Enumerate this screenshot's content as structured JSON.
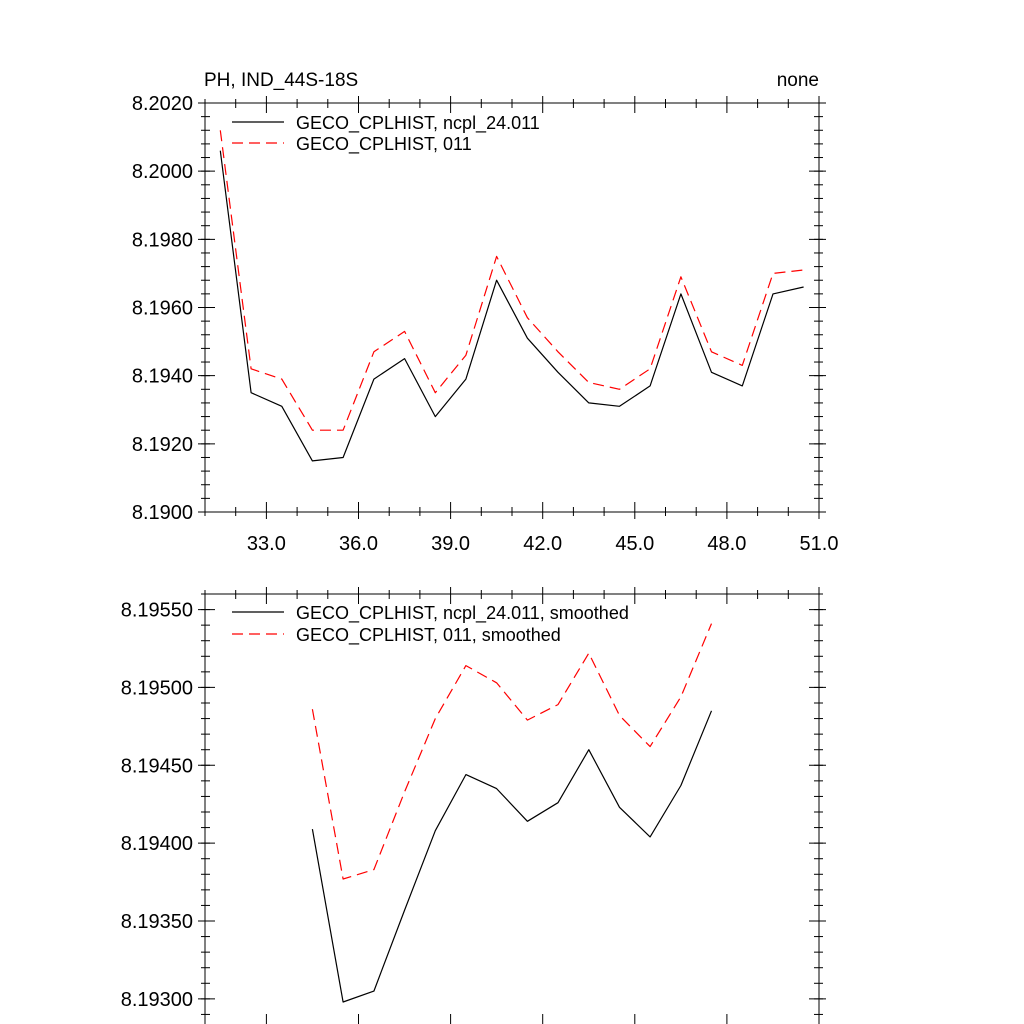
{
  "chart_data": [
    {
      "type": "line",
      "title_left": "PH, IND_44S-18S",
      "title_right": "none",
      "xlabel": "",
      "ylabel": "",
      "xlim": [
        31,
        51
      ],
      "ylim": [
        8.19,
        8.202
      ],
      "x_ticks": [
        33.0,
        36.0,
        39.0,
        42.0,
        45.0,
        48.0,
        51.0
      ],
      "x_tick_labels": [
        "33.0",
        "36.0",
        "39.0",
        "42.0",
        "45.0",
        "48.0",
        "51.0"
      ],
      "y_ticks": [
        8.19,
        8.192,
        8.194,
        8.196,
        8.198,
        8.2,
        8.202
      ],
      "y_tick_labels": [
        "8.1900",
        "8.1920",
        "8.1940",
        "8.1960",
        "8.1980",
        "8.2000",
        "8.2020"
      ],
      "legend_position": "top-left",
      "grid": false,
      "series": [
        {
          "name": "GECO_CPLHIST, ncpl_24.011",
          "color": "#000000",
          "dash": "solid",
          "x": [
            31.5,
            32.5,
            33.5,
            34.5,
            35.5,
            36.5,
            37.5,
            38.5,
            39.5,
            40.5,
            41.5,
            42.5,
            43.5,
            44.5,
            45.5,
            46.5,
            47.5,
            48.5,
            49.5,
            50.5
          ],
          "y": [
            8.2006,
            8.1935,
            8.1931,
            8.1915,
            8.1916,
            8.1939,
            8.1945,
            8.1928,
            8.1939,
            8.1968,
            8.1951,
            8.1941,
            8.1932,
            8.1931,
            8.1937,
            8.1964,
            8.1941,
            8.1937,
            8.1964,
            8.1966
          ]
        },
        {
          "name": "GECO_CPLHIST, 011",
          "color": "#ff0000",
          "dash": "dashed",
          "x": [
            31.5,
            32.5,
            33.5,
            34.5,
            35.5,
            36.5,
            37.5,
            38.5,
            39.5,
            40.5,
            41.5,
            42.5,
            43.5,
            44.5,
            45.5,
            46.5,
            47.5,
            48.5,
            49.5,
            50.5
          ],
          "y": [
            8.2012,
            8.1942,
            8.1939,
            8.1924,
            8.1924,
            8.1947,
            8.1953,
            8.1935,
            8.1946,
            8.1975,
            8.1957,
            8.1947,
            8.1938,
            8.1936,
            8.1942,
            8.1969,
            8.1947,
            8.1943,
            8.197,
            8.1971
          ]
        }
      ]
    },
    {
      "type": "line",
      "title_left": "",
      "title_right": "",
      "xlabel": "",
      "ylabel": "",
      "xlim": [
        31,
        51
      ],
      "ylim": [
        8.1928,
        8.1956
      ],
      "x_ticks": [
        33.0,
        36.0,
        39.0,
        42.0,
        45.0,
        48.0,
        51.0
      ],
      "x_tick_labels": [],
      "y_ticks": [
        8.193,
        8.1935,
        8.194,
        8.1945,
        8.195,
        8.1955
      ],
      "y_tick_labels": [
        "8.19300",
        "8.19350",
        "8.19400",
        "8.19450",
        "8.19500",
        "8.19550"
      ],
      "legend_position": "top-left",
      "grid": false,
      "series": [
        {
          "name": "GECO_CPLHIST, ncpl_24.011, smoothed",
          "color": "#000000",
          "dash": "solid",
          "x": [
            34.5,
            35.5,
            36.5,
            37.5,
            38.5,
            39.5,
            40.5,
            41.5,
            42.5,
            43.5,
            44.5,
            45.5,
            46.5,
            47.5
          ],
          "y": [
            8.19409,
            8.19298,
            8.19305,
            8.19357,
            8.19408,
            8.19444,
            8.19435,
            8.19414,
            8.19426,
            8.1946,
            8.19423,
            8.19404,
            8.19437,
            8.19485
          ]
        },
        {
          "name": "GECO_CPLHIST, 011, smoothed",
          "color": "#ff0000",
          "dash": "dashed",
          "x": [
            34.5,
            35.5,
            36.5,
            37.5,
            38.5,
            39.5,
            40.5,
            41.5,
            42.5,
            43.5,
            44.5,
            45.5,
            46.5,
            47.5
          ],
          "y": [
            8.19486,
            8.19377,
            8.19383,
            8.19433,
            8.1948,
            8.19514,
            8.19503,
            8.19479,
            8.19489,
            8.19522,
            8.19482,
            8.19462,
            8.19494,
            8.19541
          ]
        }
      ]
    }
  ]
}
